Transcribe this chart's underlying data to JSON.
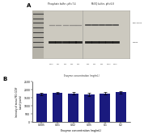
{
  "panel_b": {
    "categories": [
      "0.005",
      "0.01",
      "0.02",
      "0.05",
      "0.1",
      "0.2"
    ],
    "values": [
      1720,
      1790,
      1760,
      1690,
      1760,
      1820
    ],
    "errors": [
      80,
      70,
      75,
      110,
      85,
      60
    ],
    "bar_color": "#1a1a7e",
    "xlabel": "Enzyme concentration (mg/mL)",
    "ylabel": "Intensity of mono-PEG-GCSF\nband (pixels)",
    "ylim": [
      0,
      2500
    ],
    "yticks": [
      0,
      500,
      1000,
      1500,
      2000,
      2500
    ],
    "label": "B"
  },
  "panel_a": {
    "label": "A",
    "background": "#c8c5bc",
    "left_title": "Phosphate buffer, pH=7.4",
    "right_title": "MilliQ buffer, pH=6.8",
    "right_labels": [
      "PEG-GCSF",
      "G-CSF"
    ],
    "xlabel": "Enzyme concentration (mg/mL)"
  }
}
